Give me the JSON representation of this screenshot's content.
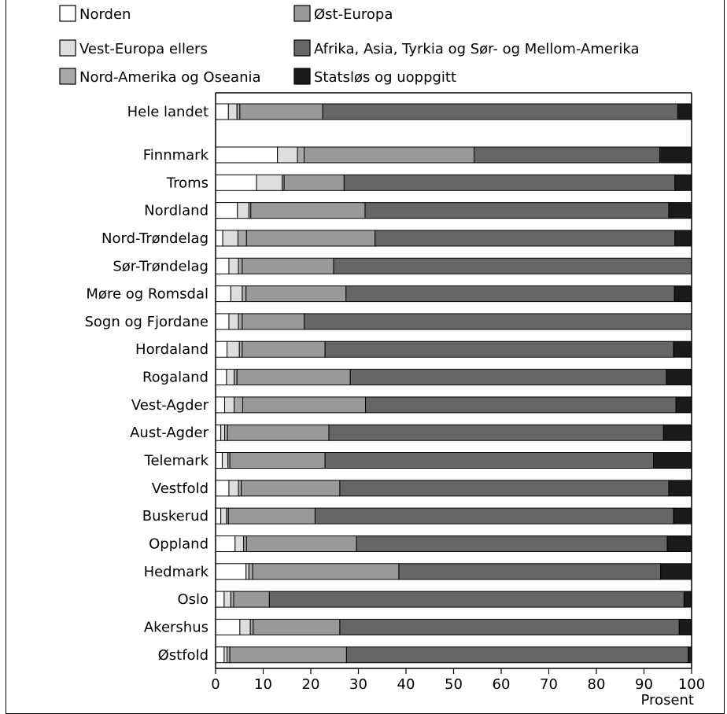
{
  "chart_data": {
    "type": "bar",
    "orientation": "horizontal",
    "stacked": true,
    "categories": [
      "Hele landet",
      "Finnmark",
      "Troms",
      "Nordland",
      "Nord-Trøndelag",
      "Sør-Trøndelag",
      "Møre og Romsdal",
      "Sogn og Fjordane",
      "Hordaland",
      "Rogaland",
      "Vest-Agder",
      "Aust-Agder",
      "Telemark",
      "Vestfold",
      "Buskerud",
      "Oppland",
      "Hedmark",
      "Oslo",
      "Akershus",
      "Østfold"
    ],
    "series": [
      {
        "name": "Norden",
        "color": "#ffffff",
        "values": [
          2.7,
          13.0,
          8.6,
          4.6,
          1.5,
          2.8,
          3.2,
          2.8,
          2.4,
          2.3,
          1.9,
          1.1,
          1.4,
          2.8,
          1.1,
          4.1,
          6.4,
          1.8,
          5.1,
          1.8
        ]
      },
      {
        "name": "Vest-Europa ellers",
        "color": "#dedede",
        "values": [
          1.8,
          4.2,
          5.4,
          2.4,
          3.2,
          2.0,
          2.4,
          2.0,
          2.6,
          1.6,
          2.0,
          0.8,
          1.2,
          2.0,
          1.2,
          1.8,
          0.6,
          1.4,
          2.2,
          0.6
        ]
      },
      {
        "name": "Nord-Amerika og Oseania",
        "color": "#a9a9a9",
        "values": [
          0.6,
          1.4,
          0.4,
          0.4,
          1.8,
          0.8,
          0.8,
          0.8,
          0.6,
          0.6,
          1.8,
          0.6,
          0.4,
          0.6,
          0.4,
          0.6,
          0.8,
          0.6,
          0.6,
          0.6
        ]
      },
      {
        "name": "Øst-Europa",
        "color": "#999999",
        "values": [
          17.4,
          35.7,
          12.6,
          24.0,
          27.0,
          19.2,
          21.0,
          13.0,
          17.4,
          23.8,
          25.8,
          21.3,
          20.0,
          20.7,
          18.2,
          23.1,
          30.7,
          7.5,
          18.2,
          24.5
        ]
      },
      {
        "name": "Afrika, Asia, Tyrkia og Sør- og Mellom-Amerika",
        "color": "#666666",
        "values": [
          74.6,
          39.0,
          69.5,
          63.8,
          63.0,
          75.2,
          69.0,
          81.4,
          73.2,
          66.4,
          65.2,
          70.3,
          69.0,
          69.1,
          75.3,
          65.3,
          55.0,
          87.1,
          71.3,
          71.8
        ]
      },
      {
        "name": "Statsløs og uoppgitt",
        "color": "#1a1a1a",
        "values": [
          2.9,
          6.7,
          3.5,
          4.8,
          3.5,
          0.0,
          3.6,
          0.0,
          3.8,
          5.3,
          3.3,
          5.9,
          8.0,
          4.8,
          3.8,
          5.1,
          6.5,
          1.6,
          2.6,
          0.7
        ]
      }
    ],
    "xlim": [
      0,
      100
    ],
    "xticks": [
      "0",
      "10",
      "20",
      "30",
      "40",
      "50",
      "60",
      "70",
      "80",
      "90",
      "100"
    ],
    "xlabel": "Prosent",
    "ylabel": "",
    "legend_placement": "top",
    "grid": false
  }
}
